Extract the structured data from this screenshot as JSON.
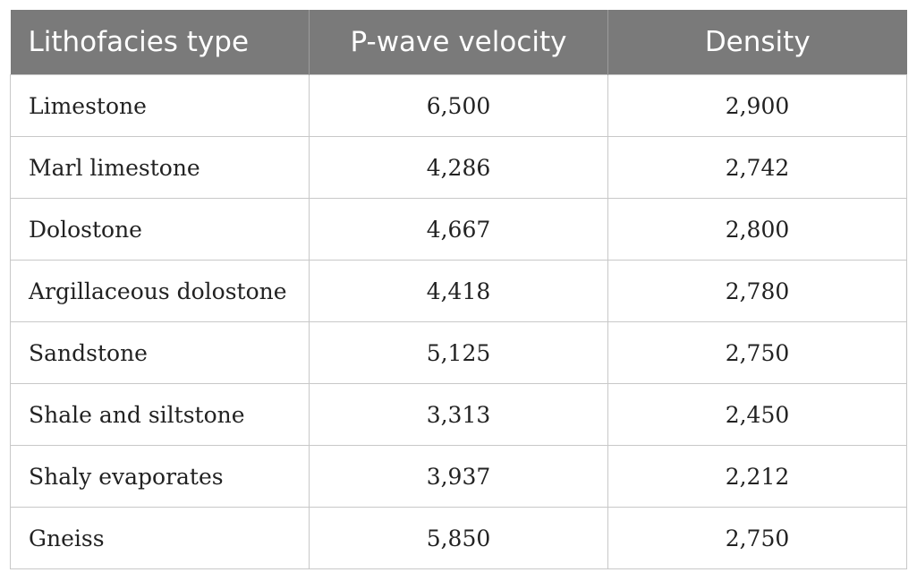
{
  "table": {
    "headers": [
      "Lithofacies type",
      "P-wave velocity",
      "Density"
    ],
    "rows": [
      [
        "Limestone",
        "6,500",
        "2,900"
      ],
      [
        "Marl limestone",
        "4,286",
        "2,742"
      ],
      [
        "Dolostone",
        "4,667",
        "2,800"
      ],
      [
        "Argillaceous dolostone",
        "4,418",
        "2,780"
      ],
      [
        "Sandstone",
        "5,125",
        "2,750"
      ],
      [
        "Shale and siltstone",
        "3,313",
        "2,450"
      ],
      [
        "Shaly evaporates",
        "3,937",
        "2,212"
      ],
      [
        "Gneiss",
        "5,850",
        "2,750"
      ]
    ]
  },
  "colors": {
    "header_background": "#7a7a7a",
    "header_text": "#ffffff",
    "grid_lines": "#c8c8c8"
  }
}
